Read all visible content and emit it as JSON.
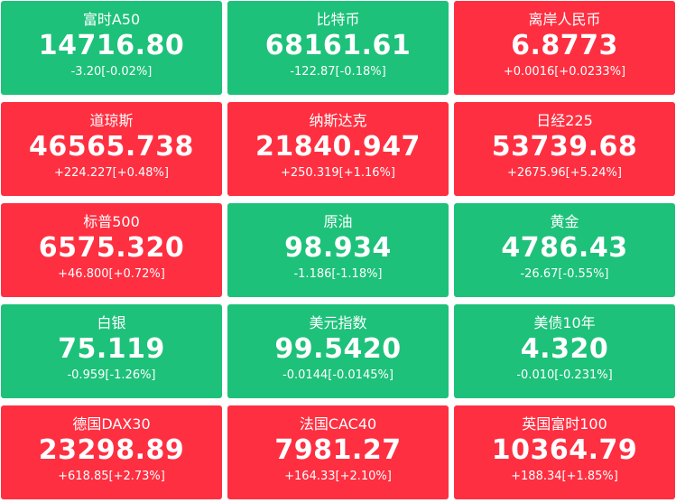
{
  "colors": {
    "up": "#fe2f41",
    "down": "#1dc17a",
    "text": "#ffffff"
  },
  "tiles": [
    {
      "name": "富时A50",
      "price": "14716.80",
      "change": "-3.20[-0.02%]",
      "direction": "down"
    },
    {
      "name": "比特币",
      "price": "68161.61",
      "change": "-122.87[-0.18%]",
      "direction": "down"
    },
    {
      "name": "离岸人民币",
      "price": "6.8773",
      "change": "+0.0016[+0.0233%]",
      "direction": "up"
    },
    {
      "name": "道琼斯",
      "price": "46565.738",
      "change": "+224.227[+0.48%]",
      "direction": "up"
    },
    {
      "name": "纳斯达克",
      "price": "21840.947",
      "change": "+250.319[+1.16%]",
      "direction": "up"
    },
    {
      "name": "日经225",
      "price": "53739.68",
      "change": "+2675.96[+5.24%]",
      "direction": "up"
    },
    {
      "name": "标普500",
      "price": "6575.320",
      "change": "+46.800[+0.72%]",
      "direction": "up"
    },
    {
      "name": "原油",
      "price": "98.934",
      "change": "-1.186[-1.18%]",
      "direction": "down"
    },
    {
      "name": "黄金",
      "price": "4786.43",
      "change": "-26.67[-0.55%]",
      "direction": "down"
    },
    {
      "name": "白银",
      "price": "75.119",
      "change": "-0.959[-1.26%]",
      "direction": "down"
    },
    {
      "name": "美元指数",
      "price": "99.5420",
      "change": "-0.0144[-0.0145%]",
      "direction": "down"
    },
    {
      "name": "美债10年",
      "price": "4.320",
      "change": "-0.010[-0.231%]",
      "direction": "down"
    },
    {
      "name": "德国DAX30",
      "price": "23298.89",
      "change": "+618.85[+2.73%]",
      "direction": "up"
    },
    {
      "name": "法国CAC40",
      "price": "7981.27",
      "change": "+164.33[+2.10%]",
      "direction": "up"
    },
    {
      "name": "英国富时100",
      "price": "10364.79",
      "change": "+188.34[+1.85%]",
      "direction": "up"
    }
  ]
}
